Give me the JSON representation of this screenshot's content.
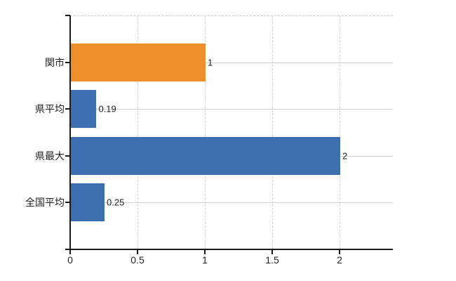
{
  "chart_data": {
    "type": "bar",
    "orientation": "horizontal",
    "title": "",
    "xlabel": "",
    "ylabel": "",
    "categories": [
      "関市",
      "県平均",
      "県最大",
      "全国平均"
    ],
    "values": [
      1,
      0.19,
      2,
      0.25
    ],
    "value_labels": [
      "1",
      "0.19",
      "2",
      "0.25"
    ],
    "bar_colors": [
      "#ee8f2b",
      "#3d6eb0",
      "#3d6eb0",
      "#3d6eb0"
    ],
    "x_ticks": [
      0,
      0.5,
      1,
      1.5,
      2
    ],
    "x_tick_labels": [
      "0",
      "0.5",
      "1",
      "1.5",
      "2"
    ],
    "xlim": [
      0,
      2.4
    ],
    "grid": true,
    "grid_horizontal_style": "solid",
    "grid_vertical_style": "dashed",
    "legend": false
  },
  "colors": {
    "bar_blue": "#3d6eb0",
    "bar_orange": "#ee8f2b",
    "axis": "#1a1a1a",
    "grid_horizontal": "#ccd4cb",
    "grid_vertical": "#d5d2db",
    "plot_top_border": "#c9c9c9",
    "text": "#222222",
    "background": "#ffffff"
  }
}
